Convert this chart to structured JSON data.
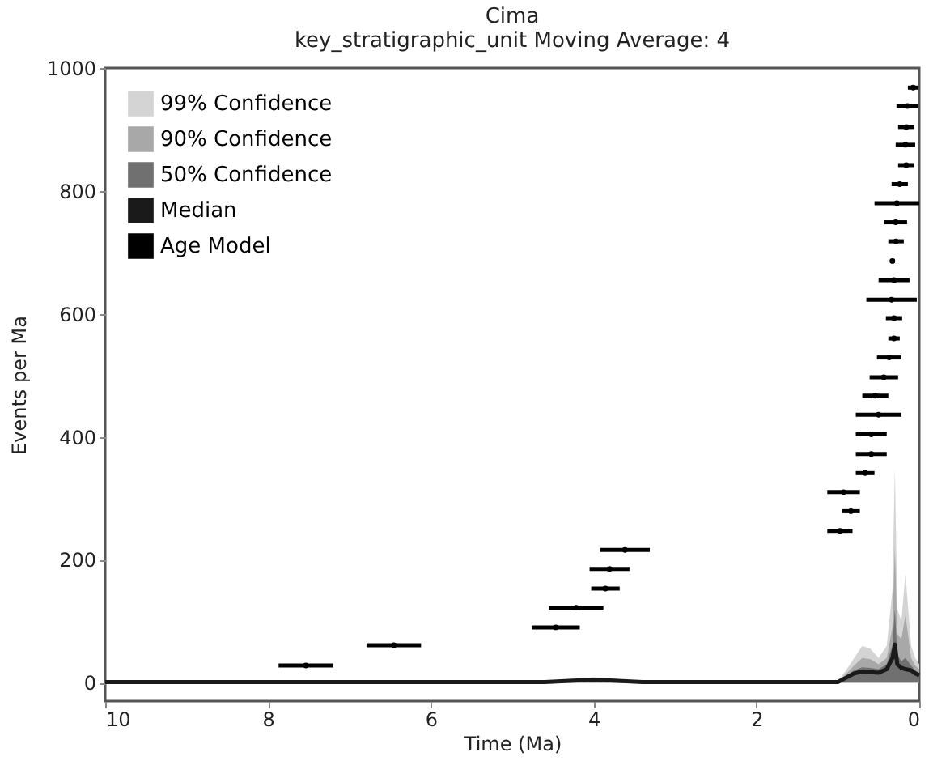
{
  "chart_data": {
    "type": "line",
    "title": "Cima",
    "subtitle": "key_stratigraphic_unit Moving Average: 4",
    "xlabel": "Time (Ma)",
    "ylabel": "Events per Ma",
    "xlim": [
      10,
      0
    ],
    "xticks": [
      10,
      8,
      6,
      4,
      2,
      0
    ],
    "ylim": [
      -30,
      1000
    ],
    "yticks": [
      0,
      200,
      400,
      600,
      800,
      1000
    ],
    "grid": false,
    "legend": "top left",
    "series": [
      {
        "name": "99% Confidence",
        "type": "area",
        "color": "#d4d4d4",
        "x": [
          10,
          4.6,
          4.3,
          4.0,
          3.7,
          3.4,
          1.0,
          0.9,
          0.8,
          0.7,
          0.6,
          0.5,
          0.4,
          0.33,
          0.3,
          0.27,
          0.22,
          0.17,
          0.1,
          0.05,
          0
        ],
        "values": [
          3,
          3,
          6,
          9,
          6,
          3,
          3,
          20,
          40,
          60,
          55,
          40,
          60,
          150,
          349,
          120,
          100,
          177,
          60,
          40,
          30
        ]
      },
      {
        "name": "90% Confidence",
        "type": "area",
        "color": "#a8a8a8",
        "x": [
          10,
          4.6,
          4.3,
          4.0,
          3.7,
          3.4,
          1.0,
          0.9,
          0.8,
          0.7,
          0.6,
          0.5,
          0.4,
          0.33,
          0.3,
          0.27,
          0.22,
          0.17,
          0.1,
          0.05,
          0
        ],
        "values": [
          2,
          2,
          5,
          7,
          5,
          2,
          2,
          14,
          28,
          40,
          38,
          30,
          40,
          90,
          220,
          80,
          70,
          110,
          40,
          28,
          22
        ]
      },
      {
        "name": "50% Confidence",
        "type": "area",
        "color": "#707070",
        "x": [
          10,
          4.6,
          4.3,
          4.0,
          3.7,
          3.4,
          1.0,
          0.9,
          0.8,
          0.7,
          0.6,
          0.5,
          0.4,
          0.33,
          0.3,
          0.27,
          0.22,
          0.17,
          0.1,
          0.05,
          0
        ],
        "values": [
          1,
          1,
          4,
          6,
          4,
          1,
          1,
          10,
          20,
          25,
          24,
          22,
          30,
          60,
          120,
          45,
          35,
          40,
          28,
          20,
          16
        ]
      },
      {
        "name": "Median",
        "color": "#1a1a1a",
        "x": [
          10,
          4.6,
          4.3,
          4.0,
          3.7,
          3.4,
          1.0,
          0.9,
          0.8,
          0.7,
          0.6,
          0.5,
          0.4,
          0.33,
          0.3,
          0.27,
          0.22,
          0.17,
          0.1,
          0.05,
          0
        ],
        "values": [
          1,
          1,
          3,
          5,
          3,
          1,
          1,
          8,
          15,
          18,
          17,
          16,
          22,
          40,
          62,
          30,
          24,
          22,
          20,
          15,
          12
        ]
      },
      {
        "name": "Age Model",
        "type": "scatter",
        "marker": "circle",
        "color": "#000000",
        "x": [
          7.535,
          6.455,
          4.465,
          4.215,
          3.855,
          3.805,
          3.615,
          0.975,
          0.84,
          0.93,
          0.665,
          0.59,
          0.59,
          0.5,
          0.54,
          0.435,
          0.37,
          0.31,
          0.31,
          0.34,
          0.31,
          0.33,
          0.285,
          0.29,
          0.275,
          0.24,
          0.16,
          0.17,
          0.16,
          0.145,
          0.075
        ],
        "values": [
          28,
          61,
          90,
          122,
          153,
          185,
          216,
          247,
          279,
          310,
          341,
          372,
          404,
          436,
          467,
          497,
          529,
          560,
          593,
          623,
          655,
          686,
          718,
          749,
          780,
          811,
          842,
          875,
          904,
          938,
          968
        ],
        "xerrors": [
          [
            7.87,
            7.2
          ],
          [
            6.79,
            6.12
          ],
          [
            4.76,
            4.17
          ],
          [
            4.55,
            3.88
          ],
          [
            4.03,
            3.68
          ],
          [
            4.05,
            3.56
          ],
          [
            3.92,
            3.31
          ],
          [
            1.13,
            0.82
          ],
          [
            0.95,
            0.73
          ],
          [
            1.13,
            0.73
          ],
          [
            0.78,
            0.55
          ],
          [
            0.78,
            0.4
          ],
          [
            0.78,
            0.4
          ],
          [
            0.78,
            0.22
          ],
          [
            0.7,
            0.38
          ],
          [
            0.61,
            0.26
          ],
          [
            0.52,
            0.22
          ],
          [
            0.38,
            0.24
          ],
          [
            0.41,
            0.21
          ],
          [
            0.65,
            0.03
          ],
          [
            0.5,
            0.12
          ],
          [
            0.36,
            0.3
          ],
          [
            0.38,
            0.19
          ],
          [
            0.43,
            0.15
          ],
          [
            0.55,
            0.0
          ],
          [
            0.34,
            0.14
          ],
          [
            0.26,
            0.06
          ],
          [
            0.29,
            0.05
          ],
          [
            0.26,
            0.06
          ],
          [
            0.28,
            0.01
          ],
          [
            0.14,
            0.01
          ]
        ]
      }
    ]
  }
}
